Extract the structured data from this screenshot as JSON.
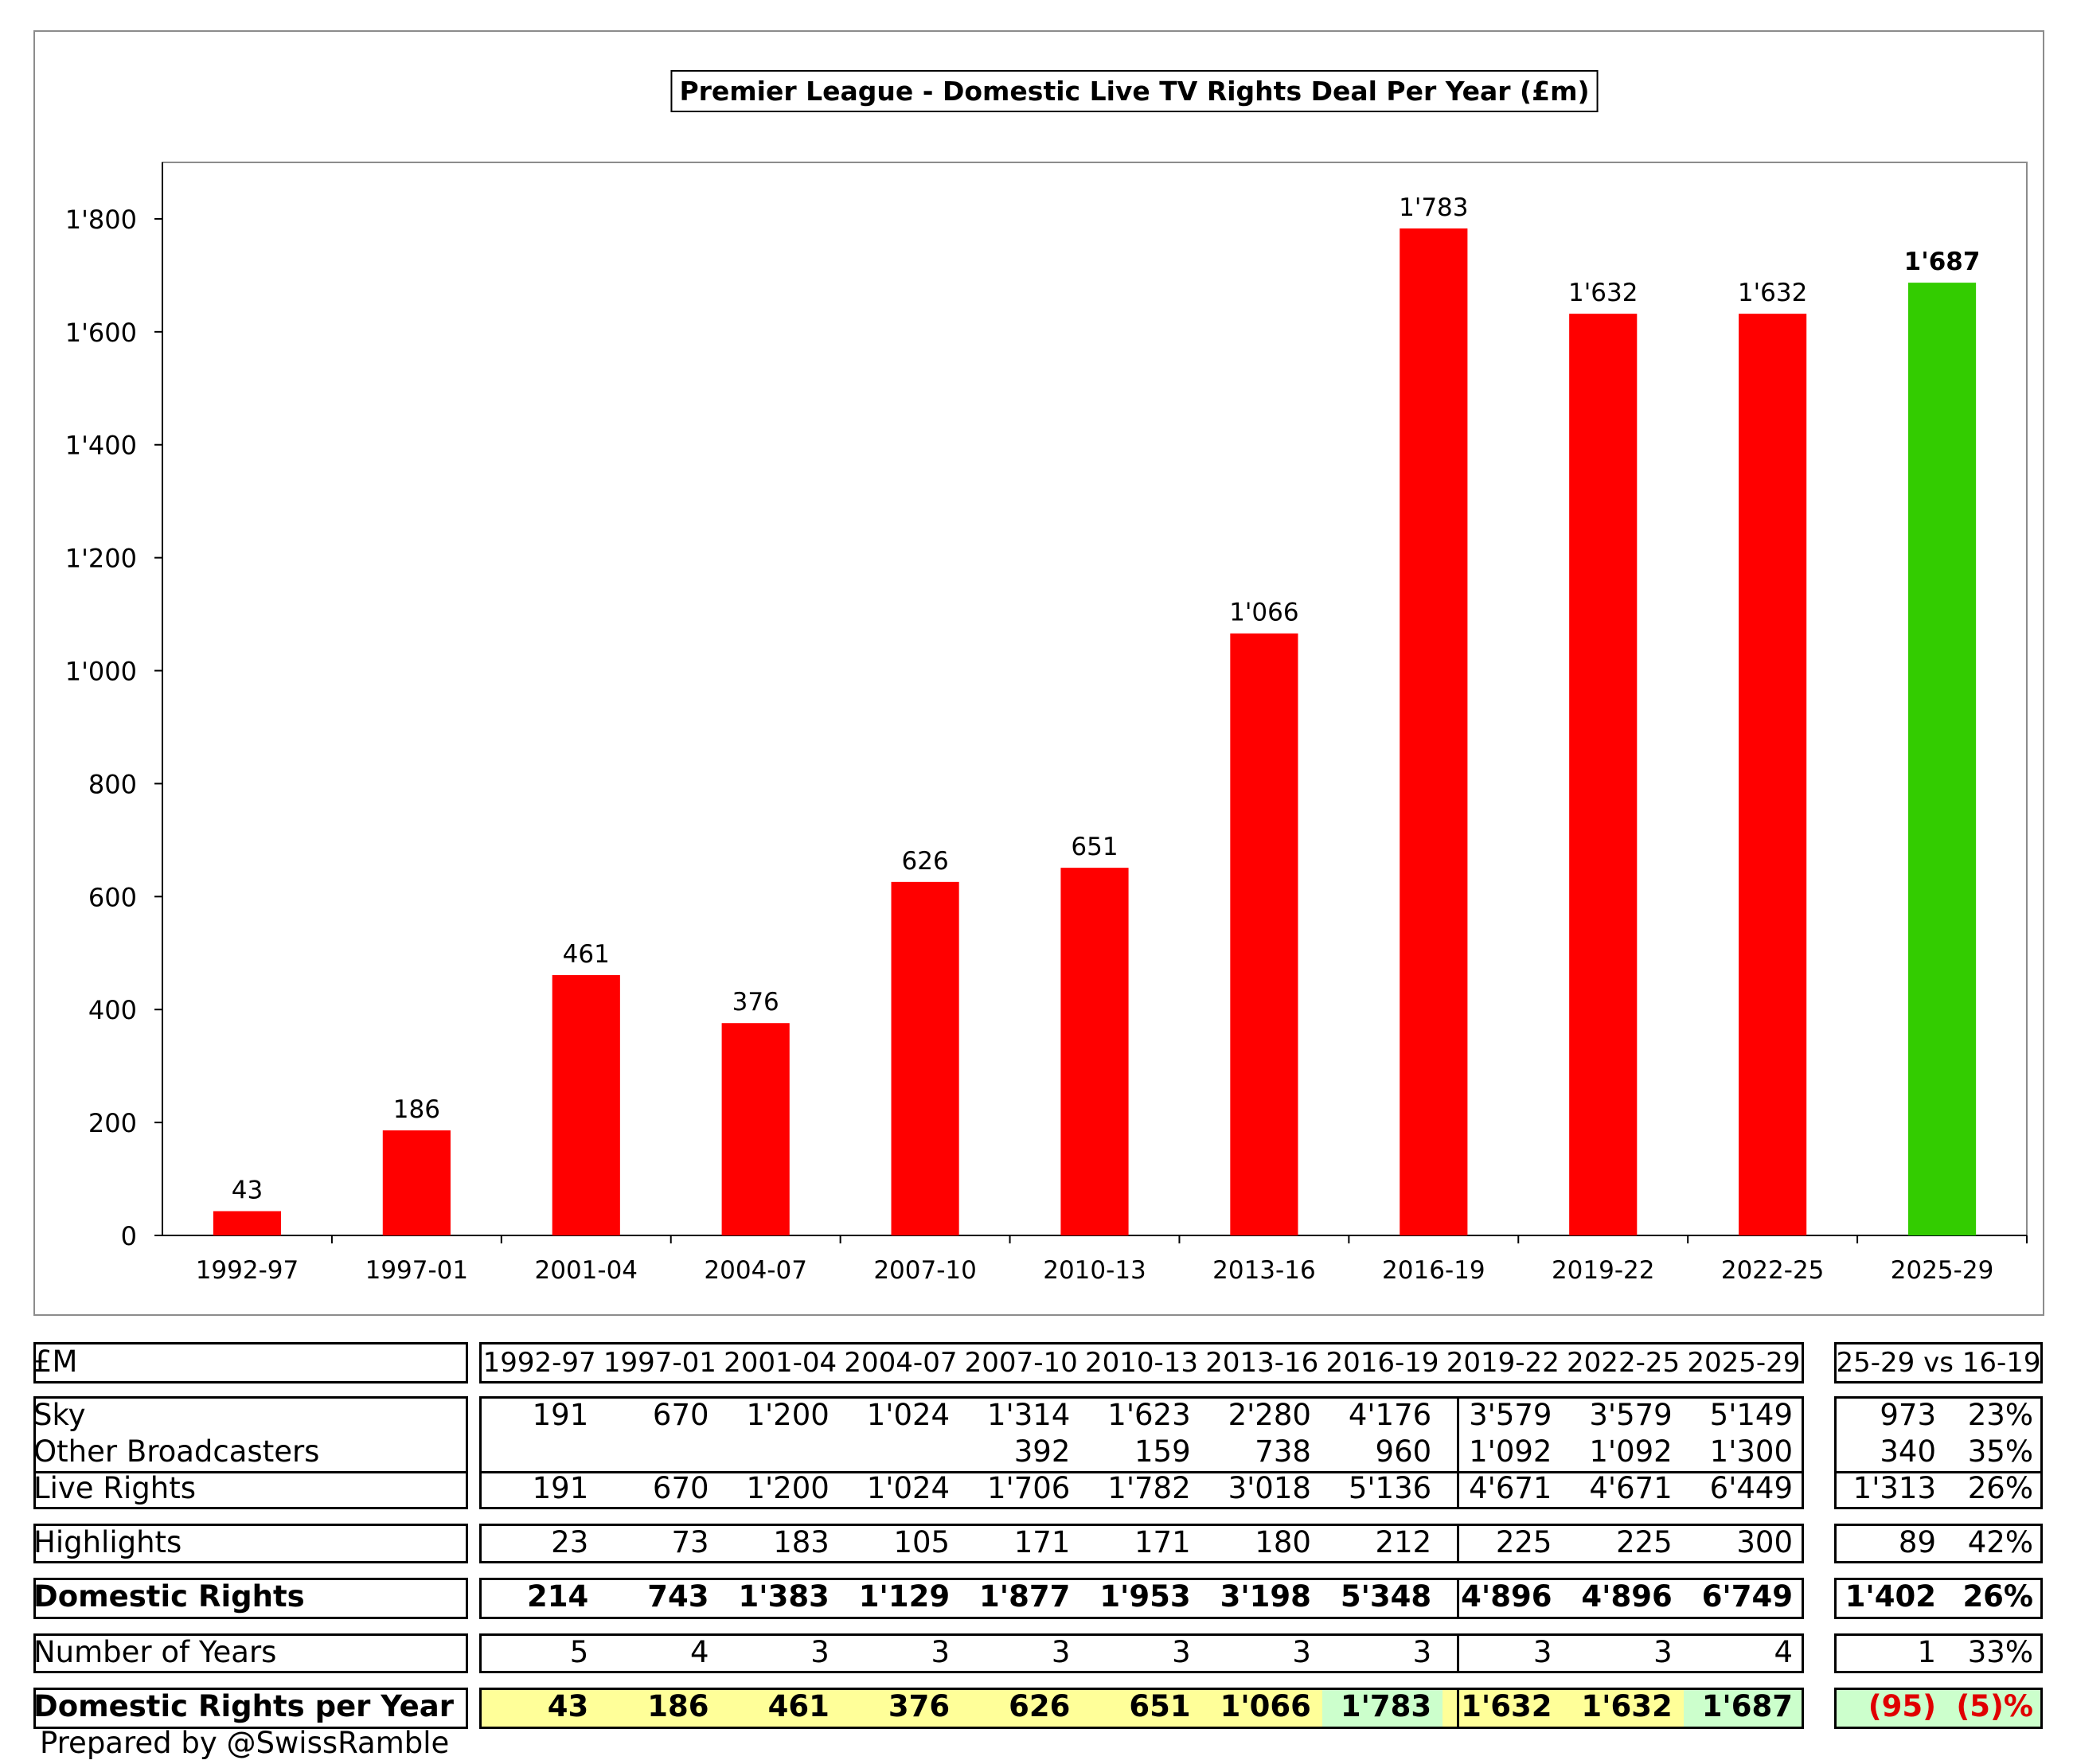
{
  "chart_data": {
    "type": "bar",
    "title": "Premier League - Domestic Live TV Rights Deal Per Year (£m)",
    "categories": [
      "1992-97",
      "1997-01",
      "2001-04",
      "2004-07",
      "2007-10",
      "2010-13",
      "2013-16",
      "2016-19",
      "2019-22",
      "2022-25",
      "2025-29"
    ],
    "values": [
      43,
      186,
      461,
      376,
      626,
      651,
      1066,
      1783,
      1632,
      1632,
      1687
    ],
    "value_labels": [
      "43",
      "186",
      "461",
      "376",
      "626",
      "651",
      "1'066",
      "1'783",
      "1'632",
      "1'632",
      "1'687"
    ],
    "bar_colors": [
      "#ff0000",
      "#ff0000",
      "#ff0000",
      "#ff0000",
      "#ff0000",
      "#ff0000",
      "#ff0000",
      "#ff0000",
      "#ff0000",
      "#ff0000",
      "#33cc00"
    ],
    "ylim": [
      0,
      1900
    ],
    "yticks": [
      0,
      200,
      400,
      600,
      800,
      1000,
      1200,
      1400,
      1600,
      1800
    ],
    "ytick_labels": [
      "0",
      "200",
      "400",
      "600",
      "800",
      "1'000",
      "1'200",
      "1'400",
      "1'600",
      "1'800"
    ],
    "xlabel": "",
    "ylabel": "",
    "grid": false,
    "legend": "none"
  },
  "table": {
    "corner_label": "£M",
    "periods": [
      "1992-97",
      "1997-01",
      "2001-04",
      "2004-07",
      "2007-10",
      "2010-13",
      "2013-16",
      "2016-19",
      "2019-22",
      "2022-25",
      "2025-29"
    ],
    "comparison_header": "25-29 vs 16-19",
    "rows": [
      {
        "label": "Sky",
        "values": [
          "191",
          "670",
          "1'200",
          "1'024",
          "1'314",
          "1'623",
          "2'280",
          "4'176",
          "3'579",
          "3'579",
          "5'149"
        ],
        "diff": "973",
        "pct": "23%"
      },
      {
        "label": "Other Broadcasters",
        "values": [
          "",
          "",
          "",
          "",
          "392",
          "159",
          "738",
          "960",
          "1'092",
          "1'092",
          "1'300"
        ],
        "diff": "340",
        "pct": "35%"
      },
      {
        "label": "Live Rights",
        "values": [
          "191",
          "670",
          "1'200",
          "1'024",
          "1'706",
          "1'782",
          "3'018",
          "5'136",
          "4'671",
          "4'671",
          "6'449"
        ],
        "diff": "1'313",
        "pct": "26%"
      },
      {
        "label": "Highlights",
        "values": [
          "23",
          "73",
          "183",
          "105",
          "171",
          "171",
          "180",
          "212",
          "225",
          "225",
          "300"
        ],
        "diff": "89",
        "pct": "42%"
      },
      {
        "label": "Domestic Rights",
        "values": [
          "214",
          "743",
          "1'383",
          "1'129",
          "1'877",
          "1'953",
          "3'198",
          "5'348",
          "4'896",
          "4'896",
          "6'749"
        ],
        "diff": "1'402",
        "pct": "26%"
      },
      {
        "label": "Number of Years",
        "values": [
          "5",
          "4",
          "3",
          "3",
          "3",
          "3",
          "3",
          "3",
          "3",
          "3",
          "4"
        ],
        "diff": "1",
        "pct": "33%"
      },
      {
        "label": "Domestic Rights per Year",
        "values": [
          "43",
          "186",
          "461",
          "376",
          "626",
          "651",
          "1'066",
          "1'783",
          "1'632",
          "1'632",
          "1'687"
        ],
        "diff": "(95)",
        "pct": "(5)%"
      }
    ],
    "highlight_colors": {
      "yellow": "#ffff99",
      "green": "#ccffcc",
      "negative": "#e00000"
    }
  },
  "footer": "Prepared by @SwissRamble"
}
